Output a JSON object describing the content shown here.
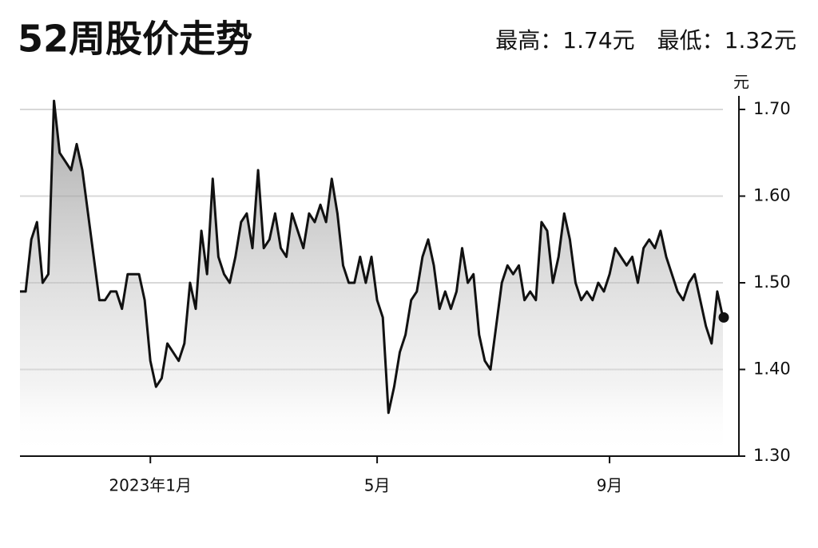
{
  "chart_data": {
    "type": "line",
    "title": "52周股价走势",
    "subtitle": "最高：1.74元　最低：1.32元",
    "y_unit": "元",
    "categories": [
      null,
      null,
      null,
      null,
      null,
      null,
      null,
      null,
      null,
      null,
      null,
      null,
      null,
      null,
      null,
      null,
      null,
      null,
      null,
      null,
      null,
      null,
      null,
      "2023年1月",
      null,
      null,
      null,
      null,
      null,
      null,
      null,
      null,
      null,
      null,
      null,
      null,
      null,
      null,
      null,
      null,
      null,
      null,
      null,
      null,
      null,
      null,
      null,
      null,
      null,
      null,
      null,
      null,
      null,
      null,
      null,
      null,
      null,
      null,
      null,
      null,
      null,
      null,
      null,
      "5月",
      null,
      null,
      null,
      null,
      null,
      null,
      null,
      null,
      null,
      null,
      null,
      null,
      null,
      null,
      null,
      null,
      null,
      null,
      null,
      null,
      null,
      null,
      null,
      null,
      null,
      null,
      null,
      null,
      null,
      null,
      null,
      null,
      null,
      null,
      null,
      null,
      null,
      null,
      null,
      null,
      "9月",
      null,
      null,
      null,
      null,
      null,
      null,
      null,
      null,
      null,
      null,
      null,
      null,
      null,
      null,
      null,
      null,
      null,
      null,
      null,
      null
    ],
    "values": [
      1.49,
      1.49,
      1.55,
      1.57,
      1.5,
      1.51,
      1.71,
      1.65,
      1.64,
      1.63,
      1.66,
      1.63,
      1.58,
      1.53,
      1.48,
      1.48,
      1.49,
      1.49,
      1.47,
      1.51,
      1.51,
      1.51,
      1.48,
      1.41,
      1.38,
      1.39,
      1.43,
      1.42,
      1.41,
      1.43,
      1.5,
      1.47,
      1.56,
      1.51,
      1.62,
      1.53,
      1.51,
      1.5,
      1.53,
      1.57,
      1.58,
      1.54,
      1.63,
      1.54,
      1.55,
      1.58,
      1.54,
      1.53,
      1.58,
      1.56,
      1.54,
      1.58,
      1.57,
      1.59,
      1.57,
      1.62,
      1.58,
      1.52,
      1.5,
      1.5,
      1.53,
      1.5,
      1.53,
      1.48,
      1.46,
      1.35,
      1.38,
      1.42,
      1.44,
      1.48,
      1.49,
      1.53,
      1.55,
      1.52,
      1.47,
      1.49,
      1.47,
      1.49,
      1.54,
      1.5,
      1.51,
      1.44,
      1.41,
      1.4,
      1.45,
      1.5,
      1.52,
      1.51,
      1.52,
      1.48,
      1.49,
      1.48,
      1.57,
      1.56,
      1.5,
      1.53,
      1.58,
      1.55,
      1.5,
      1.48,
      1.49,
      1.48,
      1.5,
      1.49,
      1.51,
      1.54,
      1.53,
      1.52,
      1.53,
      1.5,
      1.54,
      1.55,
      1.54,
      1.56,
      1.53,
      1.51,
      1.49,
      1.48,
      1.5,
      1.51,
      1.48,
      1.45,
      1.43,
      1.49,
      1.46
    ],
    "color": "#111111",
    "ylim": [
      1.3,
      1.72
    ],
    "yticks": [
      {
        "value": 1.3,
        "label": "1.30"
      },
      {
        "value": 1.4,
        "label": "1.40"
      },
      {
        "value": 1.5,
        "label": "1.50"
      },
      {
        "value": 1.6,
        "label": "1.60"
      },
      {
        "value": 1.7,
        "label": "1.70"
      }
    ],
    "grid": true
  }
}
